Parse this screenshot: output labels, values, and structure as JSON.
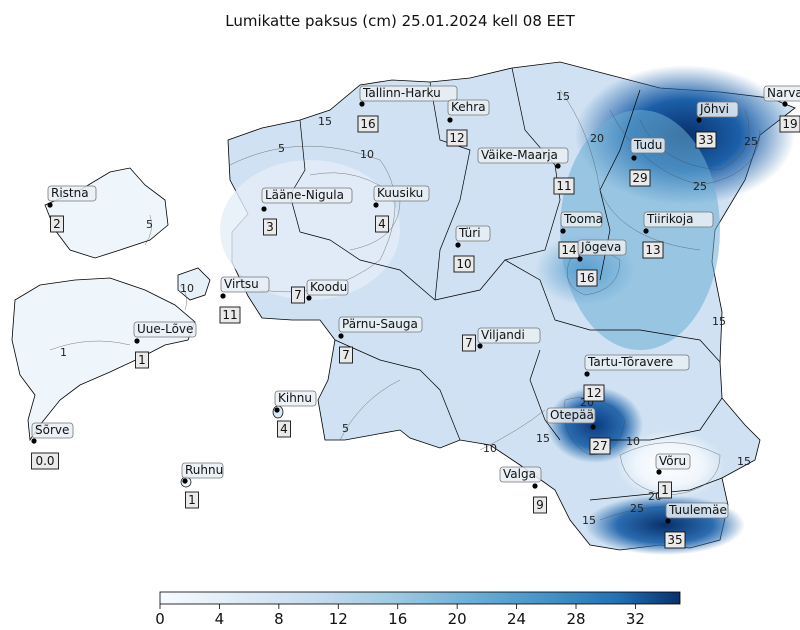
{
  "title": "Lumikatte paksus (cm) 25.01.2024 kell 08 EET",
  "colors": {
    "low": "#f7fbff",
    "mid": "#6baed6",
    "high": "#08306b",
    "border": "#000000"
  },
  "stations": [
    {
      "name": "Tallinn-Harku",
      "value": "16"
    },
    {
      "name": "Kehra",
      "value": "12"
    },
    {
      "name": "Narva",
      "value": "19"
    },
    {
      "name": "Jõhvi",
      "value": "33"
    },
    {
      "name": "Väike-Maarja",
      "value": "11"
    },
    {
      "name": "Tudu",
      "value": "29"
    },
    {
      "name": "Ristna",
      "value": "2"
    },
    {
      "name": "Lääne-Nigula",
      "value": "3"
    },
    {
      "name": "Kuusiku",
      "value": "4"
    },
    {
      "name": "Türi",
      "value": "10"
    },
    {
      "name": "Tooma",
      "value": "14"
    },
    {
      "name": "Jõgeva",
      "value": "16"
    },
    {
      "name": "Tiirikoja",
      "value": "13"
    },
    {
      "name": "Virtsu",
      "value": "11"
    },
    {
      "name": "Koodu",
      "value": "7"
    },
    {
      "name": "Uue-Lõve",
      "value": "1"
    },
    {
      "name": "Pärnu-Sauga",
      "value": "7"
    },
    {
      "name": "Viljandi",
      "value": "7"
    },
    {
      "name": "Tartu-Tõravere",
      "value": "12"
    },
    {
      "name": "Kihnu",
      "value": "4"
    },
    {
      "name": "Sõrve",
      "value": "0.0"
    },
    {
      "name": "Otepää",
      "value": "27"
    },
    {
      "name": "Võru",
      "value": "1"
    },
    {
      "name": "Ruhnu",
      "value": "1"
    },
    {
      "name": "Valga",
      "value": "9"
    },
    {
      "name": "Tuulemäe",
      "value": "35"
    }
  ],
  "contour_labels": [
    "15",
    "5",
    "10",
    "15",
    "20",
    "25",
    "25",
    "5",
    "10",
    "15",
    "15",
    "20",
    "10",
    "15",
    "10",
    "20",
    "25",
    "15",
    "5",
    "1"
  ],
  "colorbar": {
    "min": 0,
    "max": 35,
    "ticks": [
      "0",
      "4",
      "8",
      "12",
      "16",
      "20",
      "24",
      "28",
      "32"
    ]
  }
}
